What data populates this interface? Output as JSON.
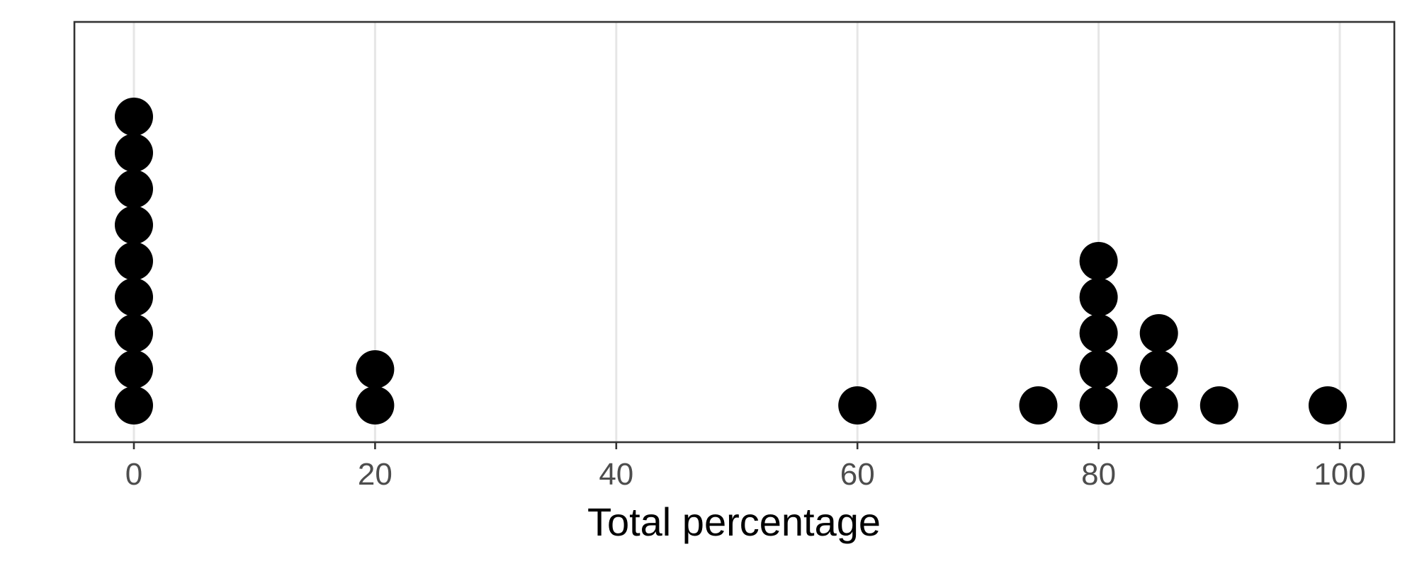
{
  "chart_data": {
    "type": "scatter",
    "subtype": "dotplot",
    "title": "",
    "xlabel": "Total percentage",
    "ylabel": "",
    "xlim": [
      -5,
      105
    ],
    "x_ticks": [
      0,
      20,
      40,
      60,
      80,
      100
    ],
    "x_tick_labels": [
      "0",
      "20",
      "40",
      "60",
      "80",
      "100"
    ],
    "grid": "vertical major gridlines only",
    "y_axis_shown": false,
    "dot_color": "#000000",
    "bins": [
      {
        "x": 0,
        "count": 9
      },
      {
        "x": 20,
        "count": 2
      },
      {
        "x": 60,
        "count": 1
      },
      {
        "x": 75,
        "count": 1
      },
      {
        "x": 80,
        "count": 5
      },
      {
        "x": 85,
        "count": 3
      },
      {
        "x": 90,
        "count": 1
      },
      {
        "x": 99,
        "count": 1
      }
    ]
  }
}
